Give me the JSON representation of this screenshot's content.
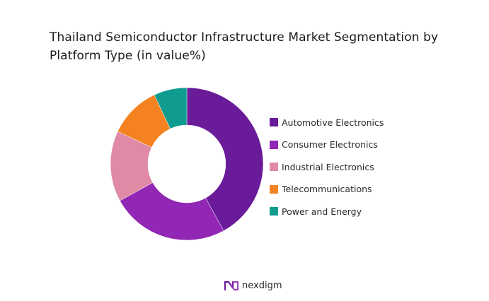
{
  "chart_data": {
    "type": "pie",
    "variant": "donut",
    "title": "Thailand Semiconductor Infrastructure Market Segmentation by Platform Type (in value%)",
    "categories": [
      "Automotive Electronics",
      "Consumer Electronics",
      "Industrial Electronics",
      "Telecommunications",
      "Power and Energy"
    ],
    "values": [
      42,
      25,
      15,
      11,
      7
    ],
    "colors": [
      "#6a1b9a",
      "#9127b4",
      "#e08aa5",
      "#f58220",
      "#0f9b8e"
    ],
    "legend_position": "right"
  },
  "brand": {
    "name": "nexdigm",
    "color": "#6a1b9a"
  }
}
